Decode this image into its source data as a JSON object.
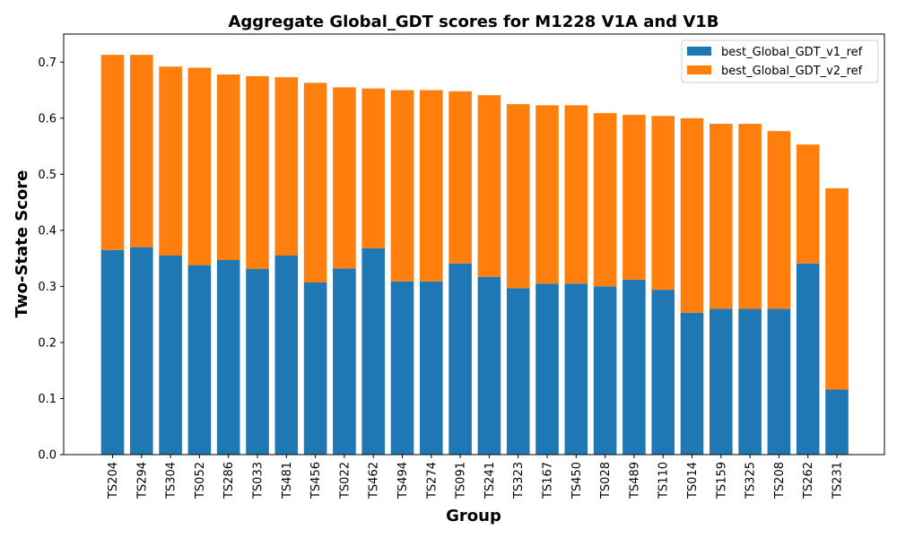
{
  "chart_data": {
    "type": "bar",
    "stacked": true,
    "title": "Aggregate Global_GDT scores for M1228 V1A and V1B",
    "xlabel": "Group",
    "ylabel": "Two-State Score",
    "ylim": [
      0,
      0.75
    ],
    "yticks": [
      "0.0",
      "0.1",
      "0.2",
      "0.3",
      "0.4",
      "0.5",
      "0.6",
      "0.7"
    ],
    "legend_position": "top-right",
    "grid": false,
    "categories": [
      "TS204",
      "TS294",
      "TS304",
      "TS052",
      "TS286",
      "TS033",
      "TS481",
      "TS456",
      "TS022",
      "TS462",
      "TS494",
      "TS274",
      "TS091",
      "TS241",
      "TS323",
      "TS167",
      "TS450",
      "TS028",
      "TS489",
      "TS110",
      "TS014",
      "TS159",
      "TS325",
      "TS208",
      "TS262",
      "TS231"
    ],
    "series": [
      {
        "name": "best_Global_GDT_v1_ref",
        "color": "#1f77b4",
        "values": [
          0.365,
          0.37,
          0.355,
          0.338,
          0.347,
          0.331,
          0.355,
          0.307,
          0.332,
          0.368,
          0.309,
          0.309,
          0.341,
          0.317,
          0.297,
          0.305,
          0.305,
          0.3,
          0.312,
          0.294,
          0.253,
          0.26,
          0.26,
          0.26,
          0.341,
          0.116
        ]
      },
      {
        "name": "best_Global_GDT_v2_ref",
        "color": "#ff7f0e",
        "values": [
          0.348,
          0.343,
          0.337,
          0.352,
          0.331,
          0.344,
          0.318,
          0.356,
          0.323,
          0.285,
          0.341,
          0.341,
          0.307,
          0.324,
          0.328,
          0.318,
          0.318,
          0.309,
          0.294,
          0.31,
          0.347,
          0.33,
          0.33,
          0.317,
          0.212,
          0.359
        ]
      }
    ]
  }
}
